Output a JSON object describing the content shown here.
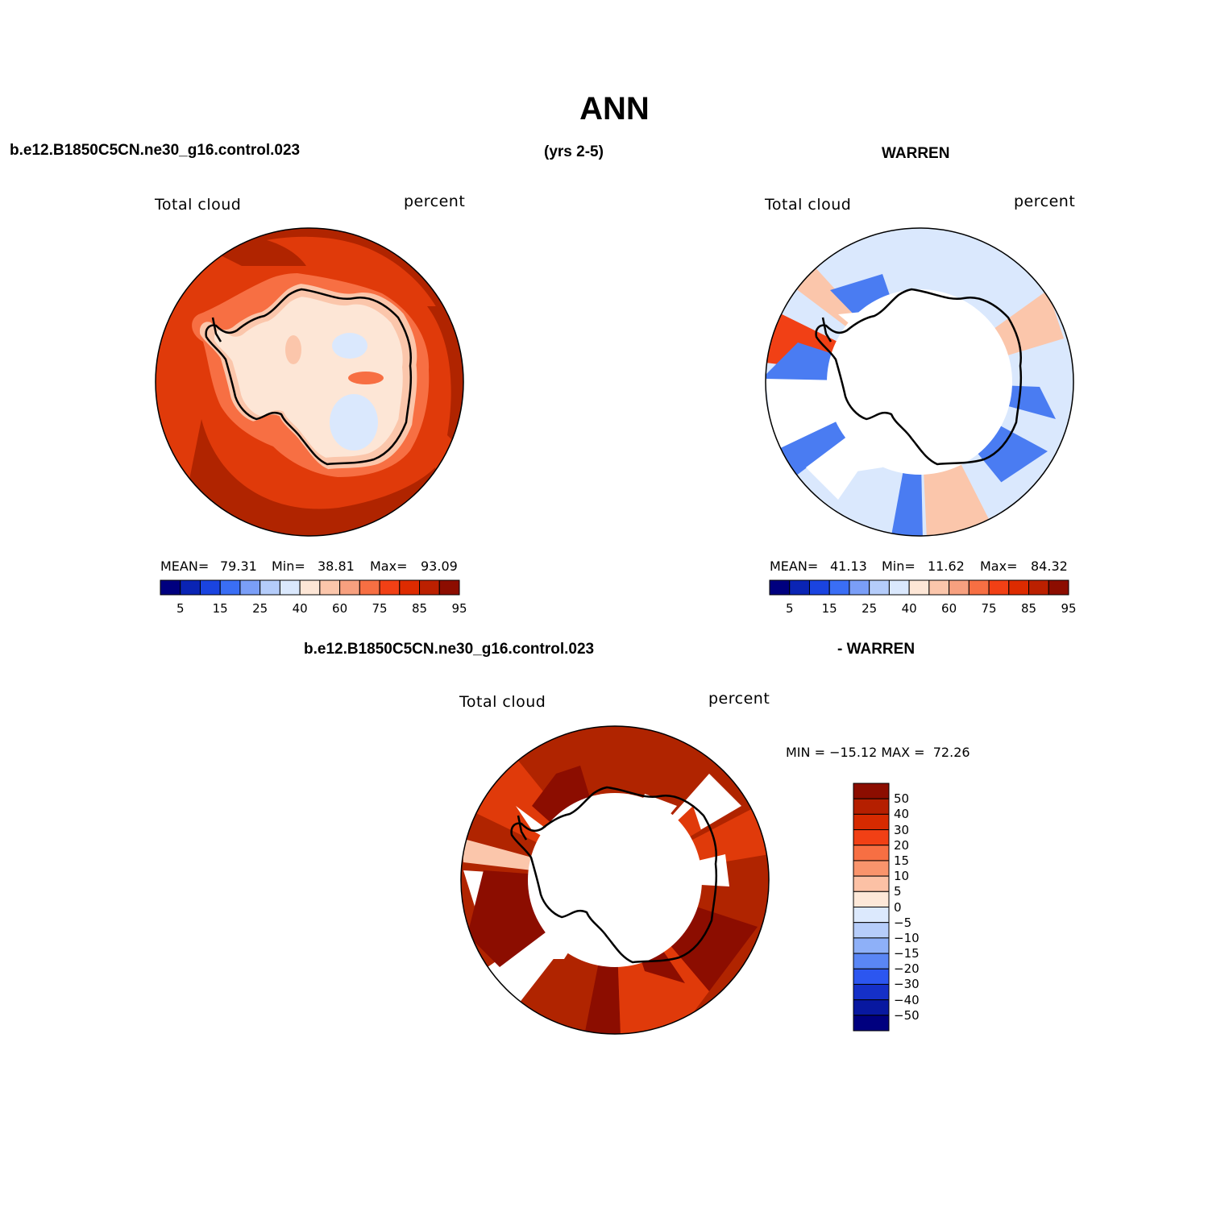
{
  "page": {
    "title": "ANN",
    "row1_left": "b.e12.B1850C5CN.ne30_g16.control.023",
    "row1_center": "(yrs 2-5)",
    "row1_right": "WARREN",
    "row2_left": "b.e12.B1850C5CN.ne30_g16.control.023",
    "row2_right": "- WARREN"
  },
  "panels": [
    {
      "id": "model",
      "variable_label": "Total cloud",
      "units_label": "percent",
      "stats": {
        "mean_label": "MEAN=",
        "mean": "79.31",
        "min_label": "Min=",
        "min": "38.81",
        "max_label": "Max=",
        "max": "93.09"
      },
      "colorbar": {
        "ticks": [
          "5",
          "15",
          "25",
          "40",
          "60",
          "75",
          "85",
          "95"
        ],
        "colors": [
          "#00007f",
          "#0a24b4",
          "#1a44e0",
          "#3a6ef5",
          "#7a9ef7",
          "#b4ccfa",
          "#dae8fd",
          "#fde6d6",
          "#fbc6ab",
          "#f7a07f",
          "#f76f43",
          "#f14015",
          "#dd2b00",
          "#bb2000",
          "#8c0d00"
        ]
      }
    },
    {
      "id": "obs",
      "variable_label": "Total cloud",
      "units_label": "percent",
      "stats": {
        "mean_label": "MEAN=",
        "mean": "41.13",
        "min_label": "Min=",
        "min": "11.62",
        "max_label": "Max=",
        "max": "84.32"
      },
      "colorbar": {
        "ticks": [
          "5",
          "15",
          "25",
          "40",
          "60",
          "75",
          "85",
          "95"
        ],
        "colors": [
          "#00007f",
          "#0a24b4",
          "#1a44e0",
          "#3a6ef5",
          "#7a9ef7",
          "#b4ccfa",
          "#dae8fd",
          "#fde6d6",
          "#fbc6ab",
          "#f7a07f",
          "#f76f43",
          "#f14015",
          "#dd2b00",
          "#bb2000",
          "#8c0d00"
        ]
      }
    },
    {
      "id": "diff",
      "variable_label": "Total cloud",
      "units_label": "percent",
      "stats_text": "MIN = −15.12 MAX =  72.26",
      "colorbar": {
        "ticks": [
          "50",
          "40",
          "30",
          "20",
          "15",
          "10",
          "5",
          "0",
          "−5",
          "−10",
          "−15",
          "−20",
          "−30",
          "−40",
          "−50"
        ],
        "colors": [
          "#8c0d00",
          "#b51f00",
          "#d62a00",
          "#f14015",
          "#f76f43",
          "#f9946c",
          "#fcc1a5",
          "#fde8d8",
          "#dce9fd",
          "#b6cdfa",
          "#8eb0f8",
          "#5a86f5",
          "#2c56f0",
          "#1530c8",
          "#0818a0",
          "#00007f"
        ]
      }
    }
  ],
  "colors": {
    "region_highest": "#b02400",
    "region_high": "#e03a0a",
    "region_mid": "#f76f43",
    "region_low": "#fbc6ab",
    "region_pale": "#fde6d6",
    "region_cool": "#dae8fd",
    "region_blue": "#4a7cf2"
  }
}
